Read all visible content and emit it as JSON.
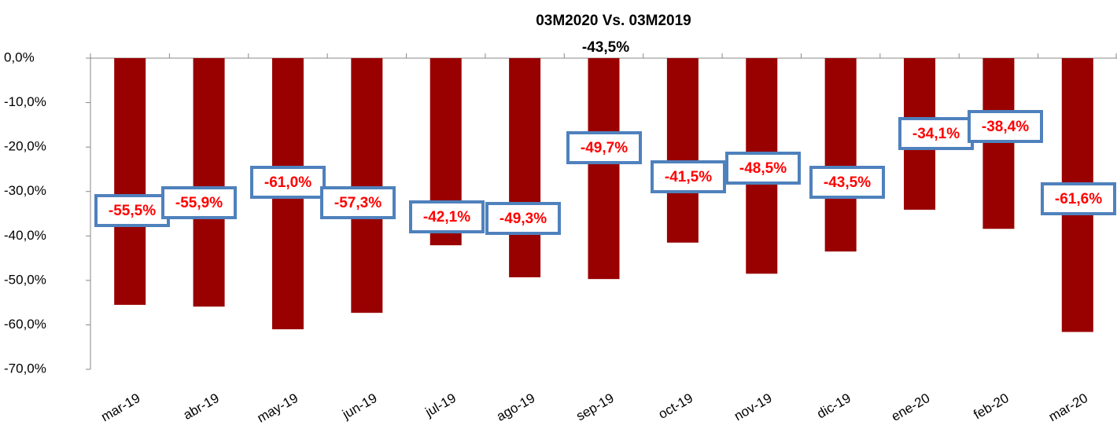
{
  "chart_data": {
    "type": "bar",
    "title": "03M2020 Vs. 03M2019",
    "subtitle": "-43,5%",
    "categories": [
      "mar-19",
      "abr-19",
      "may-19",
      "jun-19",
      "jul-19",
      "ago-19",
      "sep-19",
      "oct-19",
      "nov-19",
      "dic-19",
      "ene-20",
      "feb-20",
      "mar-20"
    ],
    "values": [
      -55.5,
      -55.9,
      -61.0,
      -57.3,
      -42.1,
      -49.3,
      -49.7,
      -41.5,
      -48.5,
      -43.5,
      -34.1,
      -38.4,
      -61.6
    ],
    "value_labels": [
      "-55,5%",
      "-55,9%",
      "-61,0%",
      "-57,3%",
      "-42,1%",
      "-49,3%",
      "-49,7%",
      "-41,5%",
      "-48,5%",
      "-43,5%",
      "-34,1%",
      "-38,4%",
      "-61,6%"
    ],
    "color": "#990000",
    "ylim": [
      -70,
      0
    ],
    "yticks": [
      {
        "value": 0,
        "label": "0,0%"
      },
      {
        "value": -10,
        "label": "-10,0%"
      },
      {
        "value": -20,
        "label": "-20,0%"
      },
      {
        "value": -30,
        "label": "-30,0%"
      },
      {
        "value": -40,
        "label": "-40,0%"
      },
      {
        "value": -50,
        "label": "-50,0%"
      },
      {
        "value": -60,
        "label": "-60,0%"
      },
      {
        "value": -70,
        "label": "-70,0%"
      }
    ],
    "grid": false
  }
}
